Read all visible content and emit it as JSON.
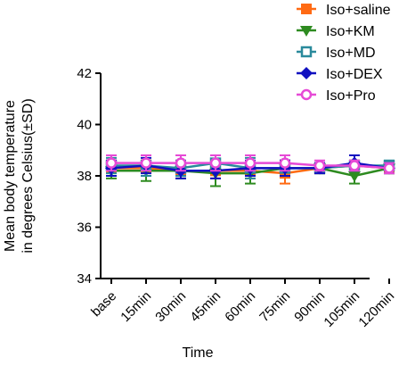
{
  "chart_data": {
    "type": "line",
    "xlabel": "Time",
    "ylabel": [
      "Mean body temperature",
      "in degrees Celsius(±SD)"
    ],
    "categories": [
      "base",
      "15min",
      "30min",
      "45min",
      "60min",
      "75min",
      "90min",
      "105min",
      "120min"
    ],
    "ylim": [
      34,
      42
    ],
    "yticks": [
      34,
      36,
      38,
      40,
      42
    ],
    "grid": false,
    "legend_position": "top-right",
    "series": [
      {
        "name": "Iso+saline",
        "color": "#ff6a13",
        "marker": "square",
        "values": [
          38.3,
          38.3,
          38.2,
          38.2,
          38.2,
          38.1,
          38.3,
          38.4,
          38.3
        ],
        "errors": [
          0.3,
          0.3,
          0.3,
          0.3,
          0.3,
          0.4,
          0.2,
          0.2,
          0.2
        ]
      },
      {
        "name": "Iso+KM",
        "color": "#2e8b20",
        "marker": "triangle-down",
        "values": [
          38.2,
          38.2,
          38.2,
          38.1,
          38.1,
          38.3,
          38.3,
          38.0,
          38.3
        ],
        "errors": [
          0.3,
          0.4,
          0.3,
          0.5,
          0.4,
          0.3,
          0.2,
          0.3,
          0.2
        ]
      },
      {
        "name": "Iso+MD",
        "color": "#2a8a9c",
        "marker": "square-open",
        "values": [
          38.4,
          38.4,
          38.3,
          38.5,
          38.3,
          38.3,
          38.3,
          38.4,
          38.4
        ],
        "errors": [
          0.3,
          0.4,
          0.3,
          0.3,
          0.4,
          0.3,
          0.2,
          0.2,
          0.2
        ]
      },
      {
        "name": "Iso+DEX",
        "color": "#1010c0",
        "marker": "diamond",
        "values": [
          38.3,
          38.4,
          38.2,
          38.2,
          38.3,
          38.3,
          38.3,
          38.5,
          38.3
        ],
        "errors": [
          0.3,
          0.3,
          0.3,
          0.3,
          0.3,
          0.3,
          0.2,
          0.3,
          0.2
        ]
      },
      {
        "name": "Iso+Pro",
        "color": "#e64ad6",
        "marker": "circle-open",
        "values": [
          38.5,
          38.5,
          38.5,
          38.5,
          38.5,
          38.5,
          38.4,
          38.4,
          38.3
        ],
        "errors": [
          0.3,
          0.3,
          0.3,
          0.3,
          0.3,
          0.3,
          0.2,
          0.2,
          0.2
        ]
      }
    ]
  }
}
